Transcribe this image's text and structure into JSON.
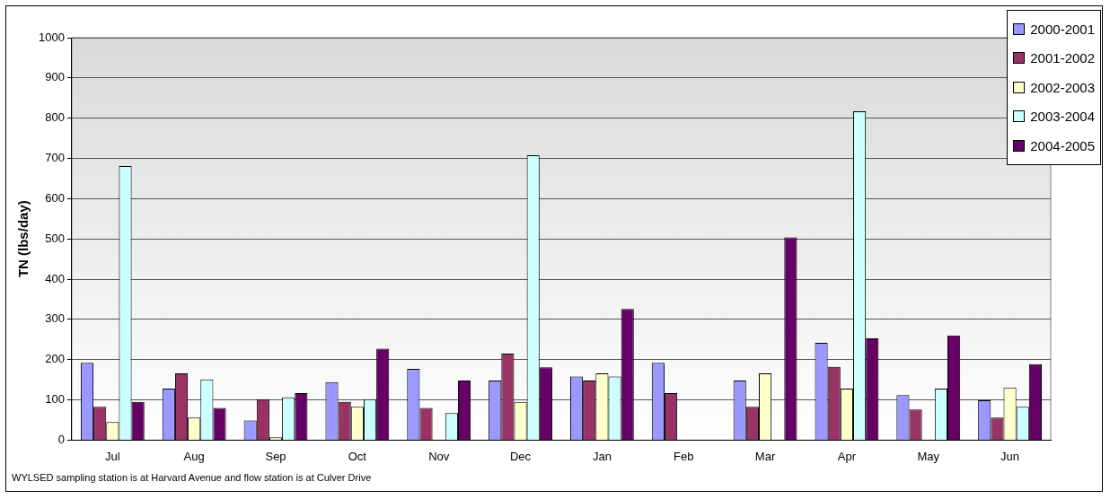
{
  "chart_data": {
    "type": "bar",
    "ylabel": "TN (lbs/day)",
    "categories": [
      "Jul",
      "Aug",
      "Sep",
      "Oct",
      "Nov",
      "Dec",
      "Jan",
      "Feb",
      "Mar",
      "Apr",
      "May",
      "Jun"
    ],
    "series": [
      {
        "name": "2000-2001",
        "color": "#9999ff",
        "values": [
          192,
          128,
          49,
          144,
          177,
          148,
          158,
          192,
          148,
          242,
          112,
          99
        ]
      },
      {
        "name": "2001-2002",
        "color": "#993366",
        "values": [
          83,
          166,
          102,
          95,
          80,
          215,
          148,
          117,
          83,
          182,
          76,
          56
        ]
      },
      {
        "name": "2002-2003",
        "color": "#ffffcc",
        "values": [
          45,
          56,
          7,
          83,
          null,
          95,
          166,
          null,
          166,
          128,
          null,
          131
        ]
      },
      {
        "name": "2003-2004",
        "color": "#ccffff",
        "values": [
          681,
          151,
          106,
          102,
          67,
          708,
          158,
          null,
          null,
          817,
          128,
          83
        ]
      },
      {
        "name": "2004-2005",
        "color": "#660066",
        "values": [
          95,
          80,
          117,
          227,
          148,
          181,
          326,
          null,
          504,
          253,
          260,
          189
        ]
      }
    ],
    "ylim": [
      0,
      1000
    ],
    "yticks": [
      0,
      100,
      200,
      300,
      400,
      500,
      600,
      700,
      800,
      900,
      1000
    ],
    "grid": "y",
    "legend": "top right",
    "annotations": [
      "WYLSED sampling station is at Harvard Avenue and flow station is at Culver Drive"
    ]
  }
}
